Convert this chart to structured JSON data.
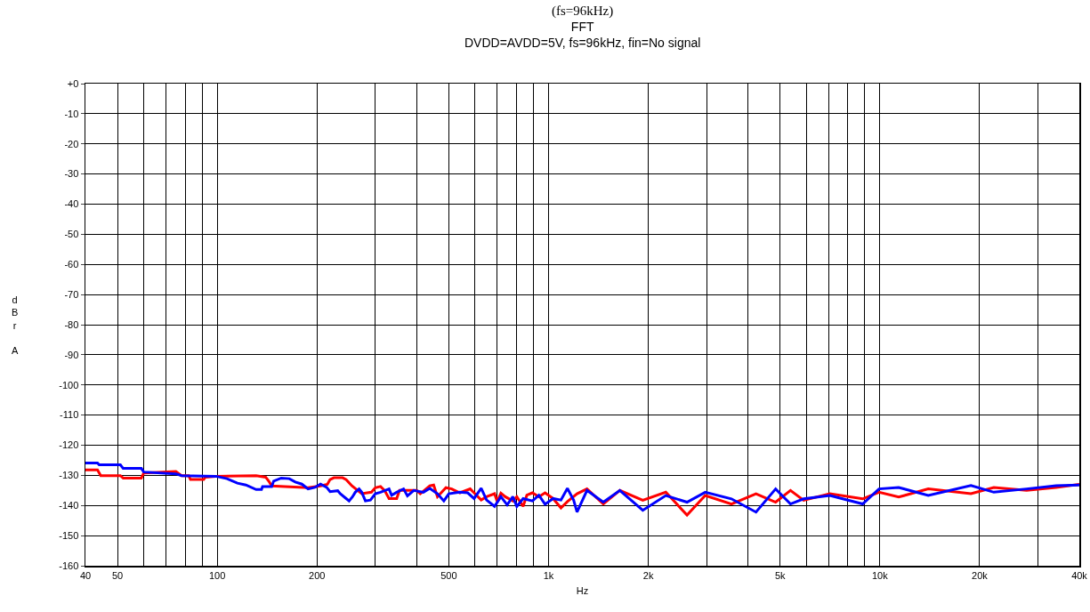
{
  "chart_data": {
    "type": "line",
    "title": "(fs=96kHz)",
    "subtitle": "FFT\nDVDD=AVDD=5V, fs=96kHz, fin=No signal",
    "xlabel": "Hz",
    "ylabel": "dBr A",
    "log": "x",
    "grid": true,
    "line_style": "solid",
    "marker": "none",
    "xlim": [
      40,
      40000
    ],
    "xticks": [
      40,
      50,
      {
        "value": 60,
        "label": null
      },
      {
        "value": 70,
        "label": null
      },
      {
        "value": 80,
        "label": null
      },
      {
        "value": 90,
        "label": null
      },
      100,
      200,
      {
        "value": 300,
        "label": null
      },
      {
        "value": 400,
        "label": null
      },
      500,
      {
        "value": 600,
        "label": null
      },
      {
        "value": 700,
        "label": null
      },
      {
        "value": 800,
        "label": null
      },
      {
        "value": 900,
        "label": null
      },
      {
        "value": 1000,
        "label": "1k"
      },
      {
        "value": 2000,
        "label": "2k"
      },
      {
        "value": 3000,
        "label": null
      },
      {
        "value": 4000,
        "label": null
      },
      {
        "value": 5000,
        "label": "5k"
      },
      {
        "value": 6000,
        "label": null
      },
      {
        "value": 7000,
        "label": null
      },
      {
        "value": 8000,
        "label": null
      },
      {
        "value": 9000,
        "label": null
      },
      {
        "value": 10000,
        "label": "10k"
      },
      {
        "value": 20000,
        "label": "20k"
      },
      {
        "value": 30000,
        "label": null
      },
      {
        "value": 40000,
        "label": "40k"
      }
    ],
    "ylim": [
      -160,
      0
    ],
    "yticks": [
      {
        "value": 0,
        "label": "+0"
      },
      -10,
      -20,
      -30,
      -40,
      -50,
      -60,
      -70,
      -80,
      -90,
      -100,
      -110,
      -120,
      -130,
      -140,
      -150,
      -160
    ],
    "series": [
      {
        "color": "#ff0000",
        "x": [
          40,
          43.5,
          44.5,
          51,
          52,
          59,
          60,
          75,
          78,
          82,
          83,
          91,
          92,
          99,
          131,
          140,
          143,
          146,
          160,
          188,
          205,
          215,
          219,
          225,
          239,
          245,
          255,
          273,
          292,
          300,
          311,
          320,
          330,
          348,
          355,
          400,
          410,
          438,
          450,
          462,
          490,
          510,
          540,
          580,
          596,
          626,
          650,
          687,
          700,
          718,
          740,
          780,
          802,
          838,
          860,
          894,
          935,
          976,
          1032,
          1090,
          1140,
          1219,
          1306,
          1463,
          1641,
          1925,
          2259,
          2618,
          2971,
          3565,
          4228,
          4846,
          5373,
          5888,
          7064,
          8873,
          9940,
          11400,
          14000,
          18836,
          22080,
          27720,
          34040,
          40000
        ],
        "values": [
          -128.2,
          -128.2,
          -130.1,
          -130.1,
          -130.9,
          -130.9,
          -129.2,
          -128.7,
          -130.1,
          -130.1,
          -131.4,
          -131.4,
          -130.6,
          -130.3,
          -130.1,
          -130.6,
          -131.9,
          -133.5,
          -133.7,
          -134.1,
          -133.5,
          -133.0,
          -131.4,
          -130.8,
          -130.8,
          -131.4,
          -133.5,
          -136.1,
          -135.6,
          -134.1,
          -133.7,
          -135.0,
          -137.7,
          -137.7,
          -135.0,
          -135.0,
          -136.1,
          -133.5,
          -133.2,
          -137.1,
          -134.1,
          -134.5,
          -135.8,
          -134.5,
          -135.8,
          -138.2,
          -137.1,
          -136.1,
          -138.7,
          -135.9,
          -137.1,
          -138.5,
          -137.1,
          -140.3,
          -136.6,
          -135.8,
          -137.1,
          -135.8,
          -137.7,
          -140.8,
          -138.7,
          -136.1,
          -134.5,
          -139.5,
          -135.0,
          -138.3,
          -135.6,
          -143.2,
          -136.7,
          -139.5,
          -136.1,
          -138.9,
          -135.0,
          -138.3,
          -136.1,
          -137.8,
          -135.6,
          -137.2,
          -134.5,
          -136.1,
          -134.0,
          -135.0,
          -134.0,
          -133.0
        ]
      },
      {
        "color": "#0000ff",
        "x": [
          40,
          43.5,
          44,
          51,
          52,
          59,
          60,
          75,
          78,
          99,
          107,
          115,
          122,
          131,
          136,
          137,
          146,
          148,
          156,
          165,
          172,
          180,
          188,
          197,
          205,
          214,
          219,
          231,
          235,
          245,
          250,
          256,
          261,
          268,
          273,
          280,
          290,
          300,
          311,
          330,
          336,
          348,
          365,
          375,
          392,
          419,
          438,
          462,
          483,
          500,
          540,
          570,
          596,
          626,
          650,
          687,
          718,
          750,
          780,
          802,
          838,
          894,
          935,
          976,
          1032,
          1090,
          1140,
          1190,
          1219,
          1306,
          1463,
          1641,
          1925,
          2259,
          2618,
          2971,
          3565,
          4228,
          4846,
          5373,
          5888,
          7064,
          8873,
          9940,
          11400,
          14000,
          18836,
          22080,
          27720,
          34040,
          40000
        ],
        "values": [
          -125.9,
          -125.9,
          -126.5,
          -126.5,
          -127.7,
          -127.7,
          -128.9,
          -129.5,
          -130.1,
          -130.3,
          -131.1,
          -132.6,
          -133.2,
          -134.7,
          -134.7,
          -133.7,
          -133.7,
          -131.9,
          -130.9,
          -131.1,
          -132.2,
          -132.9,
          -134.5,
          -134.0,
          -132.9,
          -134.0,
          -135.4,
          -135.1,
          -136.1,
          -137.7,
          -138.5,
          -137.1,
          -135.6,
          -134.5,
          -135.6,
          -138.5,
          -138.2,
          -136.1,
          -135.6,
          -134.5,
          -136.6,
          -135.6,
          -134.5,
          -136.8,
          -135.0,
          -135.6,
          -134.3,
          -136.1,
          -138.5,
          -136.1,
          -135.6,
          -135.8,
          -137.7,
          -134.3,
          -138.2,
          -140.3,
          -137.1,
          -139.8,
          -137.1,
          -140.3,
          -137.7,
          -138.5,
          -136.6,
          -139.6,
          -137.7,
          -138.2,
          -134.3,
          -138.2,
          -142.2,
          -135.0,
          -138.9,
          -135.0,
          -141.6,
          -136.7,
          -138.9,
          -135.6,
          -137.8,
          -142.2,
          -134.5,
          -139.5,
          -137.8,
          -136.7,
          -139.5,
          -134.5,
          -134.0,
          -136.7,
          -133.4,
          -135.6,
          -134.5,
          -133.4,
          -133.2
        ]
      }
    ]
  }
}
